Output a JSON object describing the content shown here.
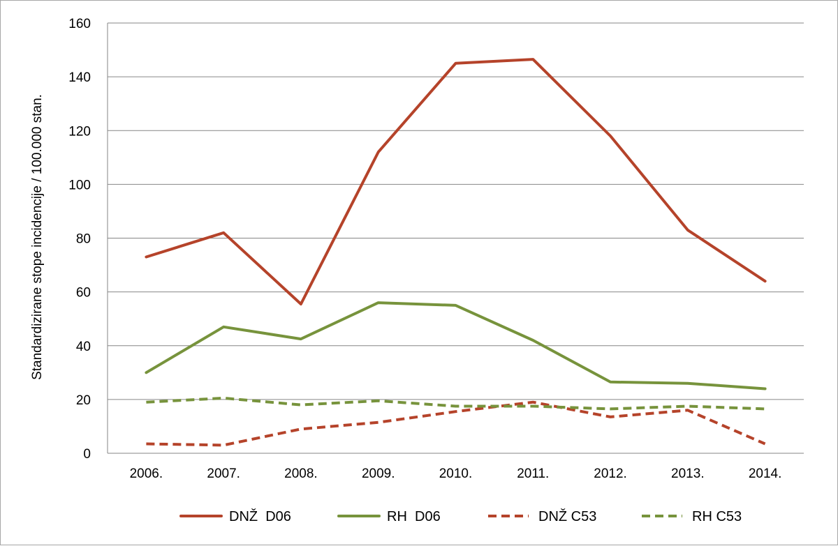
{
  "chart_data": {
    "type": "line",
    "title": "",
    "xlabel": "",
    "ylabel": "Standardizirane  stope incidencije  / 100.000  stan.",
    "categories": [
      "2006.",
      "2007.",
      "2008.",
      "2009.",
      "2010.",
      "2011.",
      "2012.",
      "2013.",
      "2014."
    ],
    "ylim": [
      0,
      160
    ],
    "yticks": [
      "0",
      "20",
      "40",
      "60",
      "80",
      "100",
      "120",
      "140",
      "160"
    ],
    "grid": true,
    "legend_position": "bottom",
    "series": [
      {
        "name": "DNŽ  D06",
        "color": "#b5432a",
        "dash": "solid",
        "values": [
          73,
          82,
          55.5,
          112,
          145,
          146.5,
          118,
          83,
          64
        ]
      },
      {
        "name": "RH  D06",
        "color": "#77933c",
        "dash": "solid",
        "values": [
          30,
          47,
          42.5,
          56,
          55,
          42,
          26.5,
          26,
          24
        ]
      },
      {
        "name": "DNŽ C53",
        "color": "#b5432a",
        "dash": "dashed",
        "values": [
          3.5,
          3,
          9,
          11.5,
          15.5,
          19,
          13.5,
          16,
          3.5
        ]
      },
      {
        "name": "RH C53",
        "color": "#77933c",
        "dash": "dashed",
        "values": [
          19,
          20.5,
          18,
          19.5,
          17.5,
          17.5,
          16.5,
          17.5,
          16.5
        ]
      }
    ]
  }
}
